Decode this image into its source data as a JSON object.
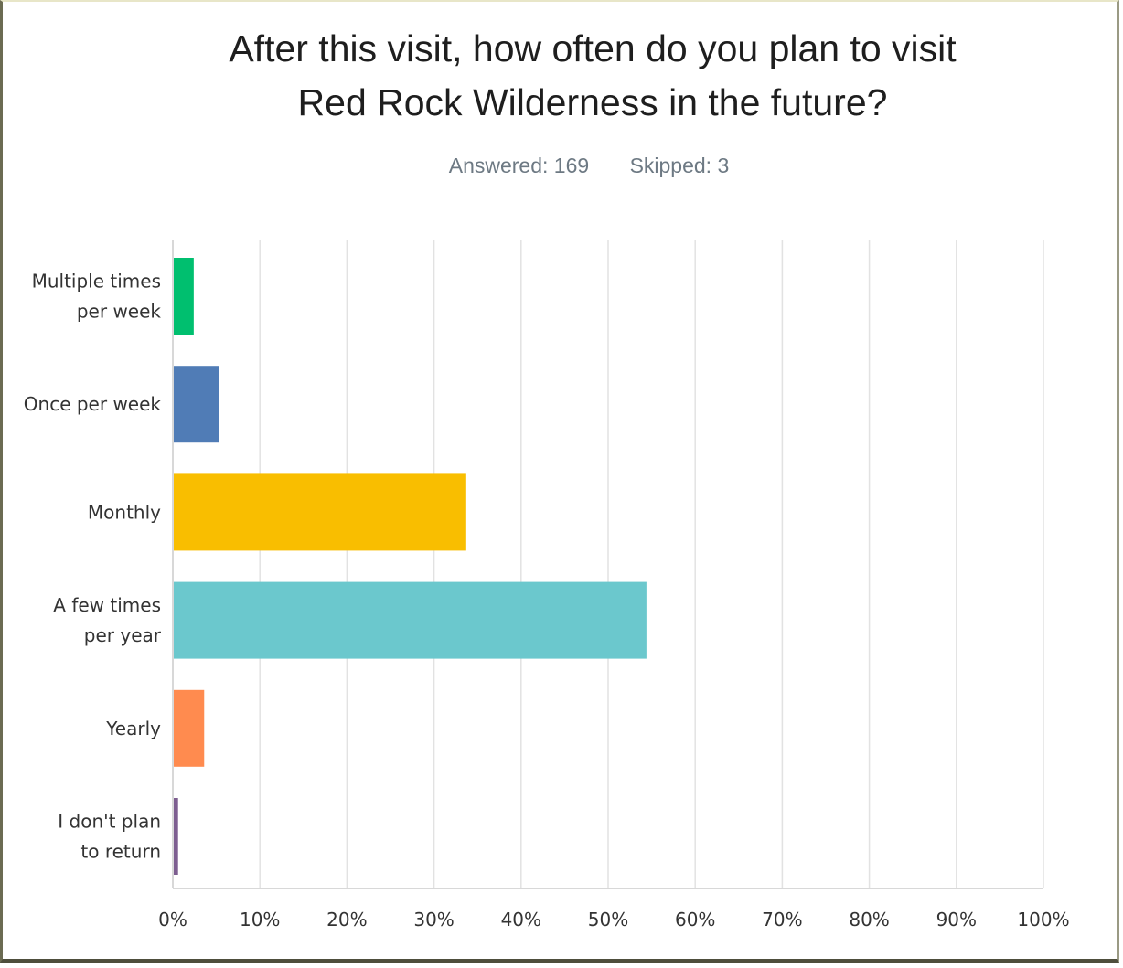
{
  "title_lines": [
    "After this visit, how often do you plan to visit",
    "Red Rock Wilderness in the future?"
  ],
  "answered_text": "Answered: 169",
  "skipped_text": "Skipped: 3",
  "chart_data": {
    "type": "bar",
    "orientation": "horizontal",
    "categories": [
      [
        "Multiple times",
        "per week"
      ],
      [
        "Once per week"
      ],
      [
        "Monthly"
      ],
      [
        "A few times",
        "per year"
      ],
      [
        "Yearly"
      ],
      [
        "I don't plan",
        "to return"
      ]
    ],
    "values": [
      2.4,
      5.3,
      33.7,
      54.4,
      3.6,
      0.6
    ],
    "colors": [
      "#00bf6f",
      "#507cb6",
      "#f9be00",
      "#6bc8cd",
      "#ff8b4f",
      "#7d5e90"
    ],
    "xlim": [
      0,
      100
    ],
    "x_ticks": [
      0,
      10,
      20,
      30,
      40,
      50,
      60,
      70,
      80,
      90,
      100
    ],
    "x_tick_labels": [
      "0%",
      "10%",
      "20%",
      "30%",
      "40%",
      "50%",
      "60%",
      "70%",
      "80%",
      "90%",
      "100%"
    ],
    "grid": true
  }
}
